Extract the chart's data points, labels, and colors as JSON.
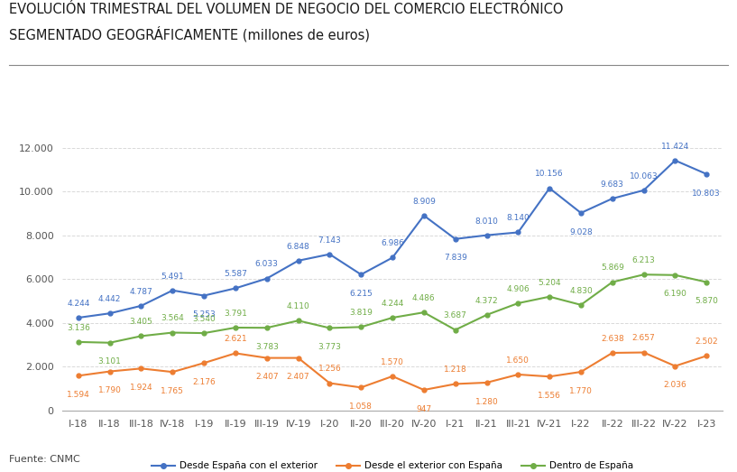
{
  "title_line1": "EVOLUCIÓN TRIMESTRAL DEL VOLUMEN DE NEGOCIO DEL COMERCIO ELECTRÓNICO",
  "title_line2": "SEGMENTADO GEOGRÁFICAMENTE (millones de euros)",
  "source": "Fuente: CNMC",
  "categories": [
    "I-18",
    "II-18",
    "III-18",
    "IV-18",
    "I-19",
    "II-19",
    "III-19",
    "IV-19",
    "I-20",
    "II-20",
    "III-20",
    "IV-20",
    "I-21",
    "II-21",
    "III-21",
    "IV-21",
    "I-22",
    "II-22",
    "III-22",
    "IV-22",
    "I-23"
  ],
  "series": [
    {
      "name": "Desde España con el exterior",
      "color": "#4472C4",
      "values": [
        4244,
        4442,
        4787,
        5491,
        5253,
        5587,
        6033,
        6848,
        7143,
        6215,
        6986,
        8909,
        7839,
        8010,
        8140,
        10156,
        9028,
        9683,
        10063,
        11424,
        10803
      ]
    },
    {
      "name": "Desde el exterior con España",
      "color": "#ED7D31",
      "values": [
        1594,
        1790,
        1924,
        1765,
        2176,
        2621,
        2407,
        2407,
        1256,
        1058,
        1570,
        947,
        1218,
        1280,
        1650,
        1556,
        1770,
        2638,
        2657,
        2036,
        2502
      ]
    },
    {
      "name": "Dentro de España",
      "color": "#70AD47",
      "values": [
        3136,
        3101,
        3405,
        3564,
        3540,
        3791,
        3783,
        4110,
        3773,
        3819,
        4244,
        4486,
        3687,
        4372,
        4906,
        5204,
        4830,
        5869,
        6213,
        6190,
        5870
      ]
    }
  ],
  "ylim": [
    0,
    12500
  ],
  "yticks": [
    0,
    2000,
    4000,
    6000,
    8000,
    10000,
    12000
  ],
  "ytick_labels": [
    "0",
    "2.000",
    "4.000",
    "6.000",
    "8.000",
    "10.000",
    "12.000"
  ],
  "background_color": "#FFFFFF",
  "plot_bg_color": "#FFFFFF",
  "grid_color": "#D9D9D9",
  "title_fontsize": 10.5,
  "label_fontsize": 6.5,
  "tick_fontsize": 8,
  "legend_fontsize": 7.5,
  "blue_label_offsets_y": [
    8,
    8,
    8,
    8,
    -12,
    8,
    8,
    8,
    8,
    -12,
    8,
    8,
    -12,
    8,
    8,
    8,
    -12,
    8,
    8,
    8,
    -12
  ],
  "orange_label_offsets_y": [
    -12,
    -12,
    -12,
    -12,
    -12,
    8,
    -12,
    -12,
    8,
    -12,
    8,
    -12,
    8,
    -12,
    8,
    -12,
    -12,
    8,
    8,
    -12,
    8
  ],
  "green_label_offsets_y": [
    8,
    -12,
    8,
    8,
    8,
    8,
    -12,
    8,
    -12,
    8,
    8,
    8,
    8,
    8,
    8,
    8,
    8,
    8,
    8,
    -12,
    -12
  ]
}
